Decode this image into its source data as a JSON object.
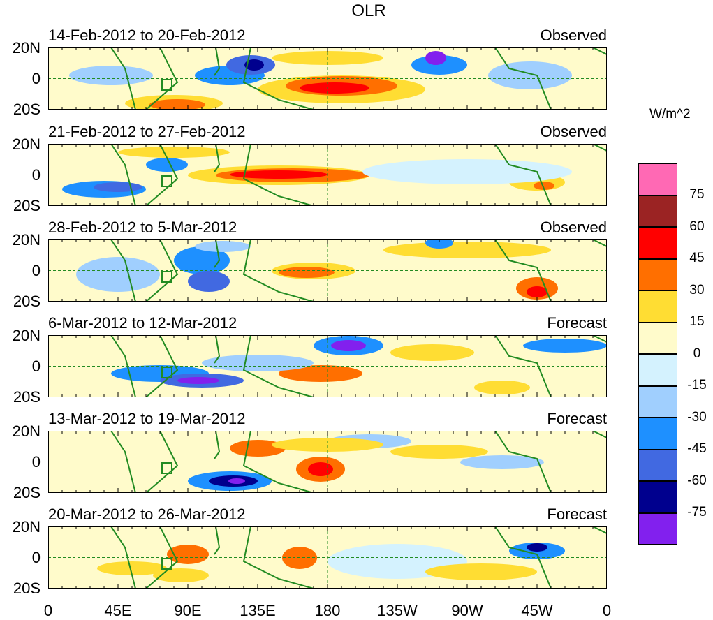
{
  "title": "OLR",
  "panels": [
    {
      "period": "14-Feb-2012 to 20-Feb-2012",
      "type": "Observed"
    },
    {
      "period": "21-Feb-2012 to 27-Feb-2012",
      "type": "Observed"
    },
    {
      "period": "28-Feb-2012 to 5-Mar-2012",
      "type": "Observed"
    },
    {
      "period": "6-Mar-2012 to 12-Mar-2012",
      "type": "Forecast"
    },
    {
      "period": "13-Mar-2012 to 19-Mar-2012",
      "type": "Forecast"
    },
    {
      "period": "20-Mar-2012 to 26-Mar-2012",
      "type": "Forecast"
    }
  ],
  "lat_labels": [
    "20N",
    "0",
    "20S"
  ],
  "lon_labels": [
    "0",
    "45E",
    "90E",
    "135E",
    "180",
    "135W",
    "90W",
    "45W",
    "0"
  ],
  "colorbar": {
    "units": "W/m^2",
    "labels": [
      "75",
      "60",
      "45",
      "30",
      "15",
      "0",
      "-15",
      "-30",
      "-45",
      "-60",
      "-75"
    ],
    "colors": [
      "#ff69b4",
      "#9b2323",
      "#ff0000",
      "#ff6f00",
      "#ffdd33",
      "#fffbcb",
      "#d4f2fe",
      "#a0cffe",
      "#1e90ff",
      "#4169e1",
      "#00008e",
      "#8220ee"
    ]
  }
}
